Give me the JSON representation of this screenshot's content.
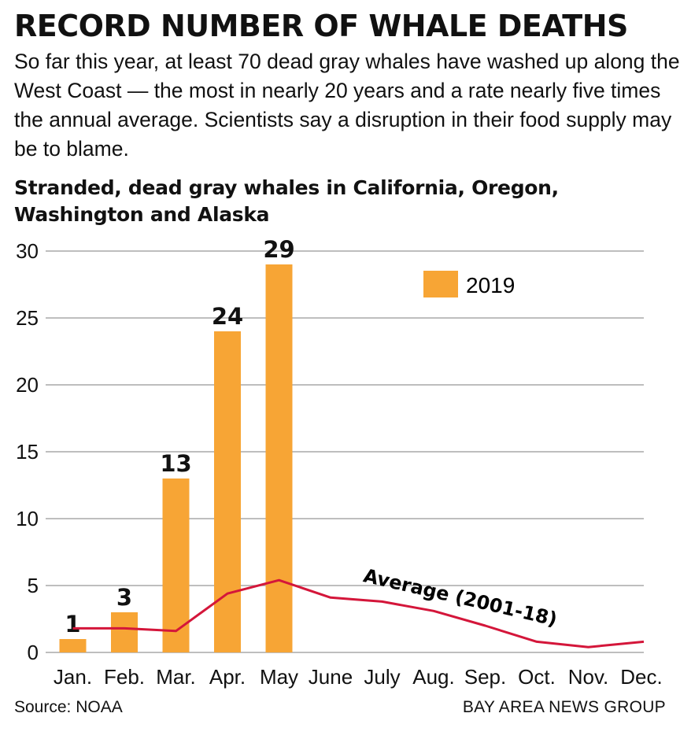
{
  "headline": "RECORD NUMBER OF WHALE DEATHS",
  "dek": "So far this year, at least 70 dead gray whales have washed up along the West Coast — the most in nearly 20 years and a rate nearly five times the annual average. Scientists say a disruption in their food supply may be to blame.",
  "source": "Source: NOAA",
  "credit": "BAY AREA NEWS GROUP",
  "colors": {
    "bar": "#f7a535",
    "line": "#d4163a",
    "grid": "#a8a8a8",
    "text": "#111111"
  },
  "chart_data": {
    "type": "bar",
    "title": "Stranded, dead gray whales in California, Oregon, Washington and Alaska",
    "categories": [
      "Jan.",
      "Feb.",
      "Mar.",
      "Apr.",
      "May",
      "June",
      "July",
      "Aug.",
      "Sep.",
      "Oct.",
      "Nov.",
      "Dec."
    ],
    "series": [
      {
        "name": "2019",
        "type": "bar",
        "values": [
          1,
          3,
          13,
          24,
          29,
          null,
          null,
          null,
          null,
          null,
          null,
          null
        ]
      },
      {
        "name": "Average (2001-18)",
        "type": "line",
        "values": [
          1.8,
          1.8,
          1.6,
          4.4,
          5.4,
          4.1,
          3.8,
          3.1,
          2.0,
          0.8,
          0.4,
          0.8
        ]
      }
    ],
    "yticks": [
      0,
      5,
      10,
      15,
      20,
      25,
      30
    ],
    "ylim": [
      0,
      30
    ],
    "grid": true,
    "legend": "top-right",
    "xlabel": "",
    "ylabel": ""
  }
}
